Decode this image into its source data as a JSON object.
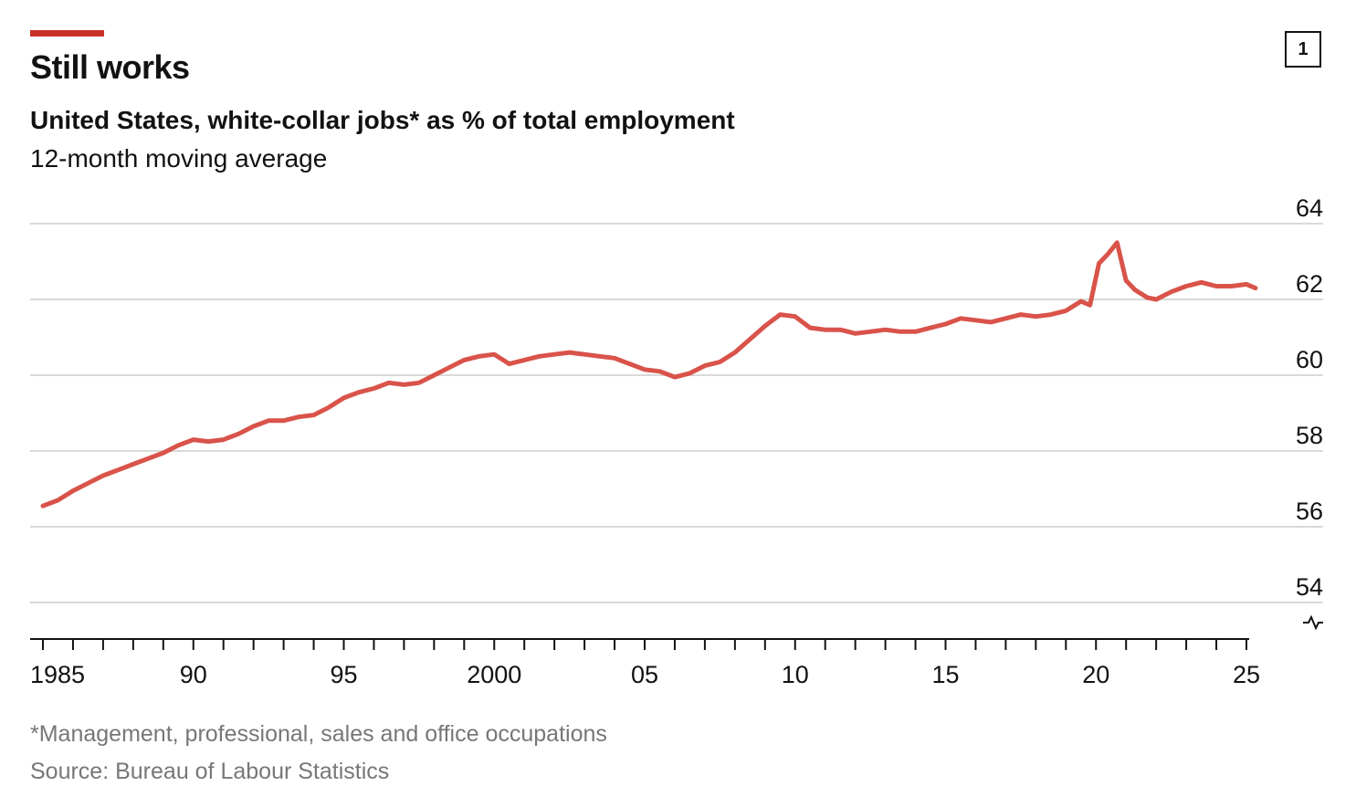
{
  "header": {
    "title": "Still works",
    "chart_number": "1",
    "accent_color": "#c7312a"
  },
  "footer": {
    "footnote": "*Management, professional, sales and office occupations",
    "source": "Source: Bureau of Labour Statistics"
  },
  "chart_data": {
    "type": "line",
    "title": "Still works",
    "subtitle": "United States, white-collar jobs* as % of total employment",
    "note": "12-month moving average",
    "xlabel": "",
    "ylabel": "",
    "xlim": [
      1984.9,
      2025.3
    ],
    "ylim": [
      54,
      64
    ],
    "y_axis_break": true,
    "grid": true,
    "y_axis_side": "right",
    "yticks": [
      {
        "value": 64,
        "label": "64"
      },
      {
        "value": 62,
        "label": "62"
      },
      {
        "value": 60,
        "label": "60"
      },
      {
        "value": 58,
        "label": "58"
      },
      {
        "value": 56,
        "label": "56"
      },
      {
        "value": 54,
        "label": "54"
      }
    ],
    "xticks": [
      {
        "value": 1985,
        "label": "1985"
      },
      {
        "value": 1990,
        "label": "90"
      },
      {
        "value": 1995,
        "label": "95"
      },
      {
        "value": 2000,
        "label": "2000"
      },
      {
        "value": 2005,
        "label": "05"
      },
      {
        "value": 2010,
        "label": "10"
      },
      {
        "value": 2015,
        "label": "15"
      },
      {
        "value": 2020,
        "label": "20"
      },
      {
        "value": 2025,
        "label": "25"
      }
    ],
    "x_minor_ticks_every": 1,
    "line_color": "#d9534a",
    "series": [
      {
        "x": [
          1985.0,
          1985.5,
          1986.0,
          1986.5,
          1987.0,
          1987.5,
          1988.0,
          1988.5,
          1989.0,
          1989.5,
          1990.0,
          1990.5,
          1991.0,
          1991.5,
          1992.0,
          1992.5,
          1993.0,
          1993.5,
          1994.0,
          1994.5,
          1995.0,
          1995.5,
          1996.0,
          1996.5,
          1997.0,
          1997.5,
          1998.0,
          1998.5,
          1999.0,
          1999.5,
          2000.0,
          2000.5,
          2001.0,
          2001.5,
          2002.0,
          2002.5,
          2003.0,
          2003.5,
          2004.0,
          2004.5,
          2005.0,
          2005.5,
          2006.0,
          2006.5,
          2007.0,
          2007.5,
          2008.0,
          2008.5,
          2009.0,
          2009.5,
          2010.0,
          2010.5,
          2011.0,
          2011.5,
          2012.0,
          2012.5,
          2013.0,
          2013.5,
          2014.0,
          2014.5,
          2015.0,
          2015.5,
          2016.0,
          2016.5,
          2017.0,
          2017.5,
          2018.0,
          2018.5,
          2019.0,
          2019.5,
          2019.8,
          2020.1,
          2020.4,
          2020.7,
          2021.0,
          2021.3,
          2021.7,
          2022.0,
          2022.5,
          2023.0,
          2023.5,
          2024.0,
          2024.5,
          2025.0,
          2025.3
        ],
        "values": [
          56.55,
          56.7,
          56.95,
          57.15,
          57.35,
          57.5,
          57.65,
          57.8,
          57.95,
          58.15,
          58.3,
          58.25,
          58.3,
          58.45,
          58.65,
          58.8,
          58.8,
          58.9,
          58.95,
          59.15,
          59.4,
          59.55,
          59.65,
          59.8,
          59.75,
          59.8,
          60.0,
          60.2,
          60.4,
          60.5,
          60.55,
          60.3,
          60.4,
          60.5,
          60.55,
          60.6,
          60.55,
          60.5,
          60.45,
          60.3,
          60.15,
          60.1,
          59.95,
          60.05,
          60.25,
          60.35,
          60.6,
          60.95,
          61.3,
          61.6,
          61.55,
          61.25,
          61.2,
          61.2,
          61.1,
          61.15,
          61.2,
          61.15,
          61.15,
          61.25,
          61.35,
          61.5,
          61.45,
          61.4,
          61.5,
          61.6,
          61.55,
          61.6,
          61.7,
          61.95,
          61.85,
          62.95,
          63.2,
          63.5,
          62.5,
          62.25,
          62.05,
          62.0,
          62.2,
          62.35,
          62.45,
          62.35,
          62.35,
          62.4,
          62.3
        ]
      }
    ]
  }
}
